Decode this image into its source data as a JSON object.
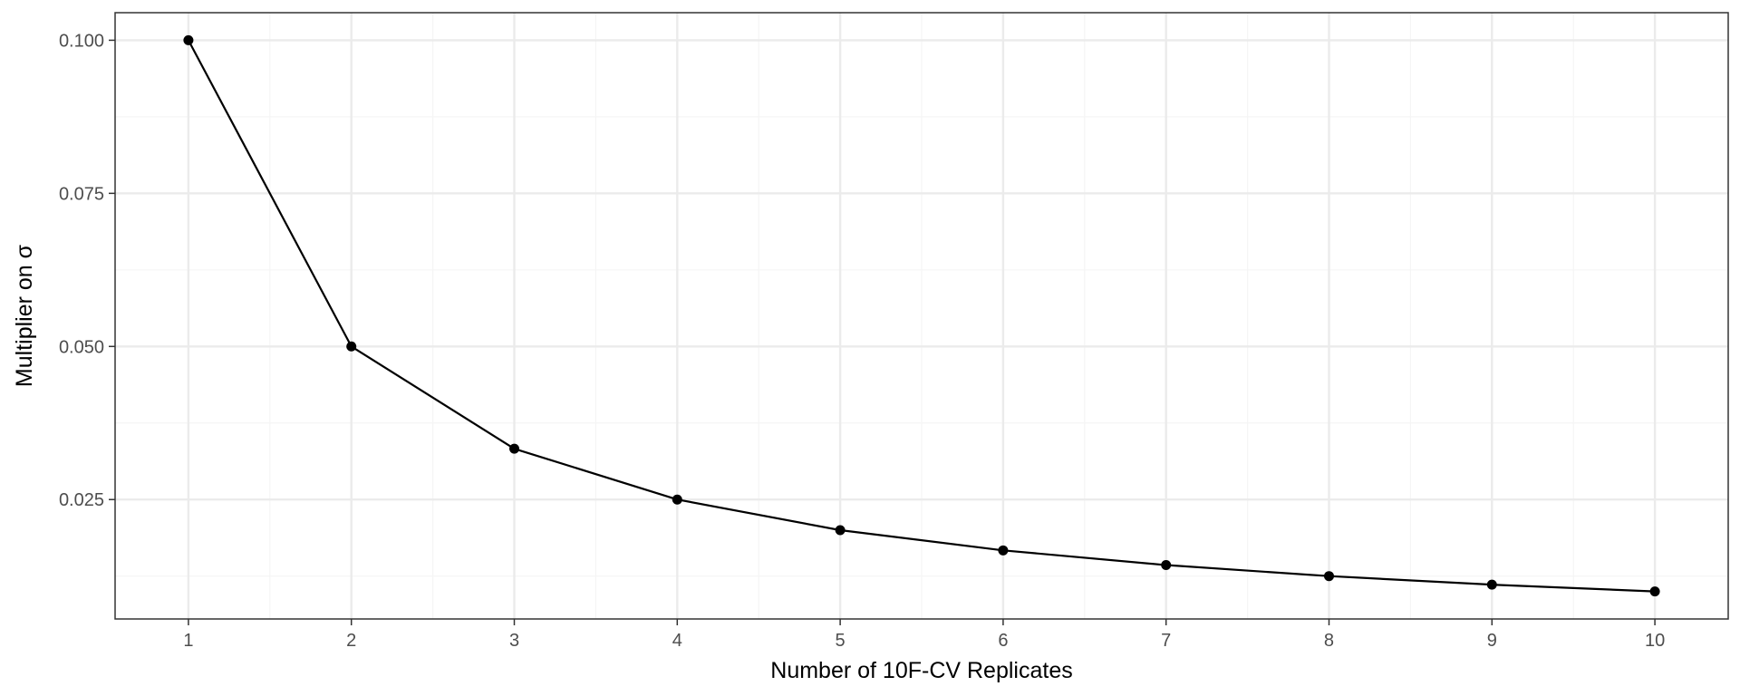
{
  "chart_data": {
    "type": "line",
    "title": "",
    "xlabel": "Number of 10F-CV Replicates",
    "ylabel": "Multiplier on σ",
    "x": [
      1,
      2,
      3,
      4,
      5,
      6,
      7,
      8,
      9,
      10
    ],
    "series": [
      {
        "values": [
          0.1,
          0.05,
          0.0333,
          0.025,
          0.02,
          0.0167,
          0.0143,
          0.0125,
          0.0111,
          0.01
        ]
      }
    ],
    "x_ticks": [
      1,
      2,
      3,
      4,
      5,
      6,
      7,
      8,
      9,
      10
    ],
    "x_tick_labels": [
      "1",
      "2",
      "3",
      "4",
      "5",
      "6",
      "7",
      "8",
      "9",
      "10"
    ],
    "y_ticks": [
      0.025,
      0.05,
      0.075,
      0.1
    ],
    "y_tick_labels": [
      "0.025",
      "0.050",
      "0.075",
      "0.100"
    ],
    "xlim": [
      0.55,
      10.45
    ],
    "ylim": [
      0.0055,
      0.1045
    ],
    "grid": true,
    "legend": "none",
    "colors": {
      "line": "#000000",
      "point": "#000000",
      "grid_major": "#ebebeb",
      "grid_minor": "#f5f5f5",
      "panel_border": "#333333",
      "tick_text": "#4d4d4d"
    }
  }
}
